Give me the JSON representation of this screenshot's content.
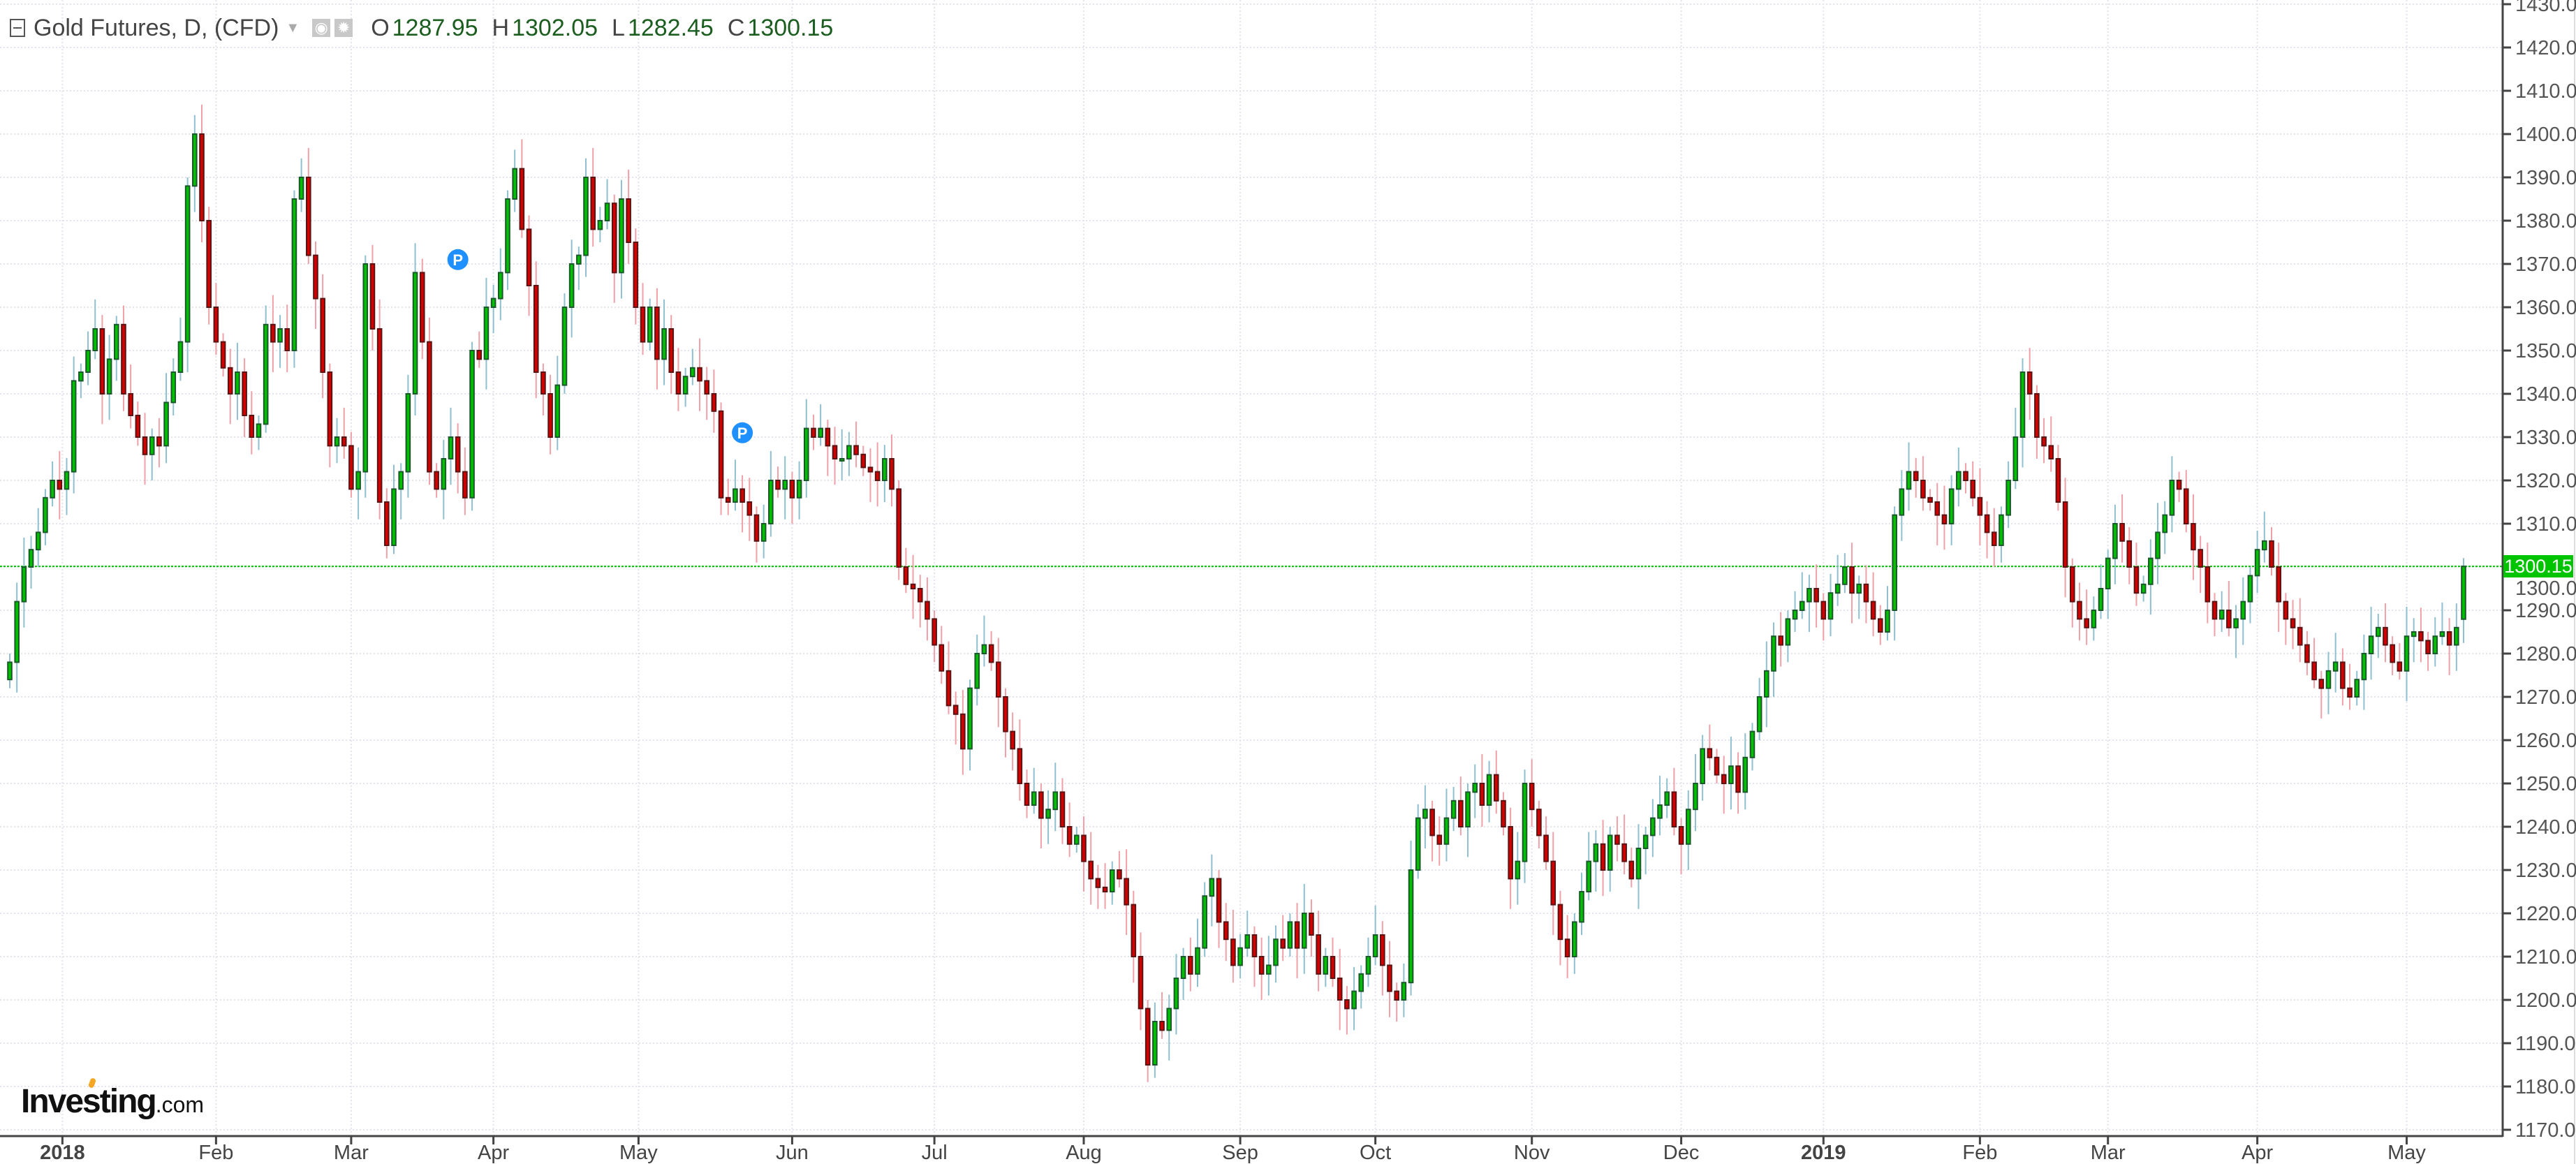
{
  "header": {
    "title": "Gold Futures, D, (CFD)",
    "o_label": "O",
    "o": "1287.95",
    "h_label": "H",
    "h": "1302.05",
    "l_label": "L",
    "l": "1282.45",
    "c_label": "C",
    "c": "1300.15"
  },
  "logo": {
    "name": "Investing",
    "suffix": ".com"
  },
  "last_price_label": "1300.15",
  "colors": {
    "up_body": "#00c000",
    "up_border": "#1a5a2a",
    "up_wick": "#8fc0d0",
    "down_body": "#d40000",
    "down_border": "#5a1414",
    "down_wick": "#f0a0a8",
    "last_line": "#00c400",
    "marker": "#1e90ff"
  },
  "chart_data": {
    "type": "candlestick",
    "title": "Gold Futures, D, (CFD)",
    "ylim": [
      1170,
      1430
    ],
    "y_ticks": [
      "1170.00",
      "1180.00",
      "1190.00",
      "1200.00",
      "1210.00",
      "1220.00",
      "1230.00",
      "1240.00",
      "1250.00",
      "1260.00",
      "1270.00",
      "1280.00",
      "1290.00",
      "1300.00",
      "1310.00",
      "1320.00",
      "1330.00",
      "1340.00",
      "1350.00",
      "1360.00",
      "1370.00",
      "1380.00",
      "1390.00",
      "1400.00",
      "1410.00",
      "1420.00",
      "1430.00"
    ],
    "x_ticks": [
      {
        "label": "2018",
        "index": 7.4
      },
      {
        "label": "Feb",
        "index": 29
      },
      {
        "label": "Mar",
        "index": 48
      },
      {
        "label": "Apr",
        "index": 68
      },
      {
        "label": "May",
        "index": 88.4
      },
      {
        "label": "Jun",
        "index": 110
      },
      {
        "label": "Jul",
        "index": 130
      },
      {
        "label": "Aug",
        "index": 151
      },
      {
        "label": "Sep",
        "index": 173
      },
      {
        "label": "Oct",
        "index": 192
      },
      {
        "label": "Nov",
        "index": 214
      },
      {
        "label": "Dec",
        "index": 235
      },
      {
        "label": "2019",
        "index": 255
      },
      {
        "label": "Feb",
        "index": 277
      },
      {
        "label": "Mar",
        "index": 295
      },
      {
        "label": "Apr",
        "index": 316
      },
      {
        "label": "May",
        "index": 337
      }
    ],
    "last_candle": {
      "open": 1287.95,
      "high": 1302.05,
      "low": 1282.45,
      "close": 1300.15
    },
    "last_price": 1300.15,
    "markers": [
      {
        "index": 63,
        "price": 1371,
        "label": "P"
      },
      {
        "index": 103,
        "price": 1331,
        "label": "P"
      }
    ],
    "close": [
      1278,
      1292,
      1300,
      1304,
      1308,
      1316,
      1320,
      1318,
      1322,
      1343,
      1345,
      1350,
      1355,
      1340,
      1348,
      1356,
      1340,
      1335,
      1330,
      1326,
      1330,
      1328,
      1338,
      1345,
      1352,
      1388,
      1400,
      1380,
      1360,
      1352,
      1346,
      1340,
      1345,
      1335,
      1330,
      1333,
      1356,
      1352,
      1355,
      1350,
      1385,
      1390,
      1372,
      1362,
      1345,
      1328,
      1330,
      1328,
      1318,
      1322,
      1370,
      1355,
      1315,
      1305,
      1318,
      1322,
      1340,
      1368,
      1352,
      1322,
      1318,
      1325,
      1330,
      1322,
      1316,
      1350,
      1348,
      1360,
      1362,
      1368,
      1385,
      1392,
      1378,
      1365,
      1345,
      1340,
      1330,
      1342,
      1360,
      1370,
      1372,
      1390,
      1378,
      1380,
      1384,
      1368,
      1385,
      1375,
      1360,
      1352,
      1360,
      1348,
      1355,
      1345,
      1340,
      1344,
      1346,
      1343,
      1340,
      1336,
      1316,
      1315,
      1318,
      1315,
      1312,
      1306,
      1310,
      1320,
      1318,
      1320,
      1316,
      1320,
      1332,
      1330,
      1332,
      1328,
      1325,
      1325,
      1328,
      1326,
      1323,
      1322,
      1320,
      1325,
      1318,
      1300,
      1296,
      1295,
      1292,
      1288,
      1282,
      1276,
      1268,
      1266,
      1258,
      1272,
      1280,
      1282,
      1278,
      1270,
      1262,
      1258,
      1250,
      1245,
      1248,
      1242,
      1244,
      1248,
      1240,
      1236,
      1238,
      1232,
      1228,
      1226,
      1225,
      1230,
      1228,
      1222,
      1210,
      1198,
      1185,
      1195,
      1193,
      1198,
      1205,
      1210,
      1206,
      1212,
      1224,
      1228,
      1218,
      1214,
      1208,
      1212,
      1215,
      1210,
      1206,
      1208,
      1214,
      1212,
      1218,
      1212,
      1220,
      1215,
      1206,
      1210,
      1205,
      1200,
      1198,
      1202,
      1206,
      1210,
      1215,
      1208,
      1202,
      1200,
      1204,
      1230,
      1242,
      1244,
      1238,
      1236,
      1242,
      1246,
      1240,
      1248,
      1250,
      1245,
      1252,
      1246,
      1240,
      1228,
      1232,
      1250,
      1244,
      1238,
      1232,
      1222,
      1214,
      1210,
      1218,
      1225,
      1232,
      1236,
      1230,
      1238,
      1236,
      1232,
      1228,
      1235,
      1238,
      1242,
      1245,
      1248,
      1240,
      1236,
      1244,
      1250,
      1258,
      1256,
      1252,
      1250,
      1254,
      1248,
      1256,
      1262,
      1270,
      1276,
      1284,
      1282,
      1288,
      1290,
      1292,
      1295,
      1292,
      1288,
      1294,
      1296,
      1300,
      1294,
      1296,
      1292,
      1288,
      1285,
      1290,
      1312,
      1318,
      1322,
      1320,
      1316,
      1315,
      1312,
      1310,
      1318,
      1322,
      1320,
      1316,
      1312,
      1308,
      1305,
      1312,
      1320,
      1330,
      1345,
      1340,
      1330,
      1328,
      1325,
      1315,
      1300,
      1292,
      1288,
      1286,
      1290,
      1295,
      1302,
      1310,
      1306,
      1300,
      1294,
      1296,
      1302,
      1308,
      1312,
      1320,
      1318,
      1310,
      1304,
      1300,
      1292,
      1288,
      1290,
      1286,
      1288,
      1292,
      1298,
      1304,
      1306,
      1300,
      1292,
      1288,
      1286,
      1282,
      1278,
      1274,
      1272,
      1276,
      1278,
      1272,
      1270,
      1274,
      1280,
      1284,
      1286,
      1282,
      1278,
      1276,
      1284,
      1285,
      1283,
      1280,
      1284,
      1285,
      1282,
      1286,
      1300.15
    ]
  }
}
